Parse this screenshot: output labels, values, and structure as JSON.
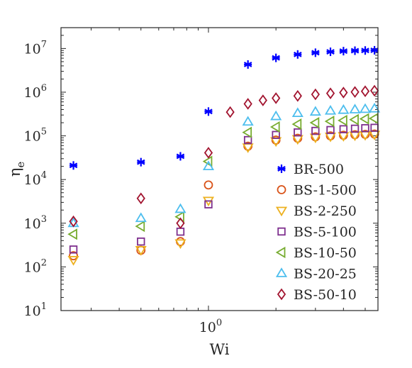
{
  "chart_data": {
    "type": "scatter",
    "xlabel": "Wi",
    "ylabel_base": "η",
    "ylabel_sub": "e",
    "x_scale": "log",
    "y_scale": "log",
    "xlim": [
      0.22,
      5.7
    ],
    "ylim": [
      10,
      30000000
    ],
    "x_tick_labels": [
      {
        "value": 1,
        "base": "10",
        "exp": "0"
      }
    ],
    "y_tick_labels": [
      {
        "value": 10,
        "base": "10",
        "exp": "1"
      },
      {
        "value": 100,
        "base": "10",
        "exp": "2"
      },
      {
        "value": 1000,
        "base": "10",
        "exp": "3"
      },
      {
        "value": 10000,
        "base": "10",
        "exp": "4"
      },
      {
        "value": 100000,
        "base": "10",
        "exp": "5"
      },
      {
        "value": 1000000,
        "base": "10",
        "exp": "6"
      },
      {
        "value": 10000000,
        "base": "10",
        "exp": "7"
      }
    ],
    "grid": false,
    "legend_position": "bottom-right",
    "series": [
      {
        "name": "BR-500",
        "color": "#0000ff",
        "marker": "asterisk",
        "points": [
          [
            0.25,
            21000
          ],
          [
            0.5,
            25000
          ],
          [
            0.75,
            34000
          ],
          [
            1.0,
            360000
          ],
          [
            1.5,
            4300000
          ],
          [
            2.0,
            6100000
          ],
          [
            2.5,
            7300000
          ],
          [
            3.0,
            8000000
          ],
          [
            3.5,
            8400000
          ],
          [
            4.0,
            8700000
          ],
          [
            4.5,
            8900000
          ],
          [
            5.0,
            9000000
          ],
          [
            5.5,
            9100000
          ]
        ]
      },
      {
        "name": "BS-1-500",
        "color": "#d95319",
        "marker": "circle",
        "points": [
          [
            0.25,
            180
          ],
          [
            0.5,
            240
          ],
          [
            0.75,
            380
          ],
          [
            1.0,
            7500
          ],
          [
            1.5,
            58000
          ],
          [
            2.0,
            80000
          ],
          [
            2.5,
            88000
          ],
          [
            3.0,
            95000
          ],
          [
            3.5,
            100000
          ],
          [
            4.0,
            103000
          ],
          [
            4.5,
            106000
          ],
          [
            5.0,
            108000
          ],
          [
            5.5,
            110000
          ]
        ]
      },
      {
        "name": "BS-2-250",
        "color": "#edb120",
        "marker": "triangle-down",
        "points": [
          [
            0.25,
            145
          ],
          [
            0.5,
            245
          ],
          [
            0.75,
            350
          ],
          [
            1.0,
            3300
          ],
          [
            1.5,
            55000
          ],
          [
            2.0,
            76000
          ],
          [
            2.5,
            85000
          ],
          [
            3.0,
            92000
          ],
          [
            3.5,
            97000
          ],
          [
            4.0,
            100000
          ],
          [
            4.5,
            103000
          ],
          [
            5.0,
            105000
          ],
          [
            5.5,
            107000
          ]
        ]
      },
      {
        "name": "BS-5-100",
        "color": "#7e2f8e",
        "marker": "square",
        "points": [
          [
            0.25,
            250
          ],
          [
            0.5,
            380
          ],
          [
            0.75,
            640
          ],
          [
            1.0,
            2700
          ],
          [
            1.5,
            80000
          ],
          [
            2.0,
            105000
          ],
          [
            2.5,
            120000
          ],
          [
            3.0,
            130000
          ],
          [
            3.5,
            136000
          ],
          [
            4.0,
            142000
          ],
          [
            4.5,
            146000
          ],
          [
            5.0,
            150000
          ],
          [
            5.5,
            153000
          ]
        ]
      },
      {
        "name": "BS-10-50",
        "color": "#77ac30",
        "marker": "triangle-left",
        "points": [
          [
            0.25,
            560
          ],
          [
            0.5,
            850
          ],
          [
            0.75,
            1400
          ],
          [
            1.0,
            26000
          ],
          [
            1.5,
            120000
          ],
          [
            2.0,
            160000
          ],
          [
            2.5,
            185000
          ],
          [
            3.0,
            200000
          ],
          [
            3.5,
            215000
          ],
          [
            4.0,
            225000
          ],
          [
            4.5,
            235000
          ],
          [
            5.0,
            245000
          ],
          [
            5.5,
            250000
          ]
        ]
      },
      {
        "name": "BS-20-25",
        "color": "#4dbeee",
        "marker": "triangle-up",
        "points": [
          [
            0.25,
            1000
          ],
          [
            0.5,
            1300
          ],
          [
            0.75,
            2100
          ],
          [
            1.0,
            20000
          ],
          [
            1.5,
            210000
          ],
          [
            2.0,
            280000
          ],
          [
            2.5,
            330000
          ],
          [
            3.0,
            355000
          ],
          [
            3.5,
            375000
          ],
          [
            4.0,
            390000
          ],
          [
            4.5,
            400000
          ],
          [
            5.0,
            410000
          ],
          [
            5.5,
            420000
          ]
        ]
      },
      {
        "name": "BS-50-10",
        "color": "#a2142f",
        "marker": "diamond",
        "points": [
          [
            0.25,
            1100
          ],
          [
            0.5,
            3700
          ],
          [
            0.75,
            1000
          ],
          [
            1.0,
            41000
          ],
          [
            1.25,
            350000
          ],
          [
            1.5,
            540000
          ],
          [
            1.75,
            650000
          ],
          [
            2.0,
            730000
          ],
          [
            2.5,
            820000
          ],
          [
            3.0,
            890000
          ],
          [
            3.5,
            940000
          ],
          [
            4.0,
            980000
          ],
          [
            4.5,
            1010000
          ],
          [
            5.0,
            1050000
          ],
          [
            5.5,
            1080000
          ]
        ]
      }
    ]
  }
}
